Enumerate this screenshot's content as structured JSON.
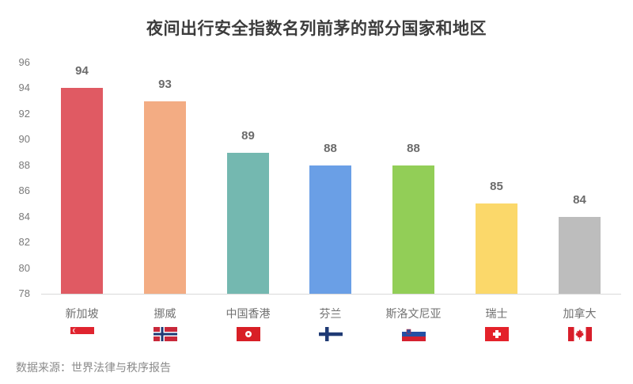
{
  "title": "夜间出行安全指数名列前茅的部分国家和地区",
  "source": "数据来源：世界法律与秩序报告",
  "chart_data": {
    "type": "bar",
    "title": "夜间出行安全指数名列前茅的部分国家和地区",
    "xlabel": "",
    "ylabel": "",
    "ylim": [
      78,
      96
    ],
    "yticks": [
      "96",
      "94",
      "92",
      "90",
      "88",
      "86",
      "84",
      "82",
      "80",
      "78"
    ],
    "grid": false,
    "legend": null,
    "categories": [
      "新加坡",
      "挪威",
      "中国香港",
      "芬兰",
      "斯洛文尼亚",
      "瑞士",
      "加拿大"
    ],
    "values": [
      94,
      93,
      89,
      88,
      88,
      85,
      84
    ],
    "value_labels": [
      "94",
      "93",
      "89",
      "88",
      "88",
      "85",
      "84"
    ],
    "colors": [
      "#e05a63",
      "#f3ac83",
      "#74b8b0",
      "#6a9fe6",
      "#92ce57",
      "#fbd86a",
      "#bdbdbd"
    ],
    "flags": [
      "singapore-flag",
      "norway-flag",
      "hong-kong-flag",
      "finland-flag",
      "slovenia-flag",
      "switzerland-flag",
      "canada-flag"
    ],
    "annotation": "数据来源：世界法律与秩序报告"
  }
}
